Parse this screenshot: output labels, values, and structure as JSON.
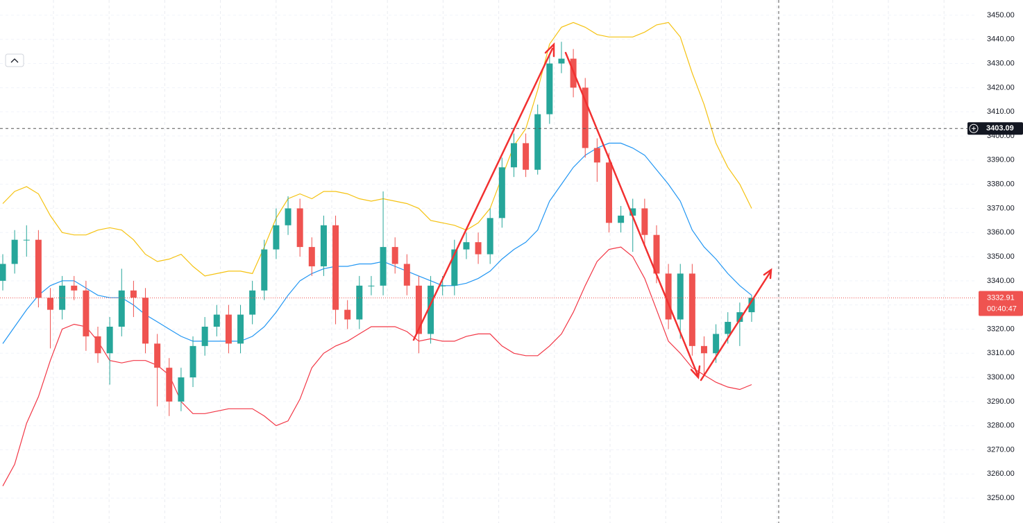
{
  "chart_data": {
    "type": "candlestick",
    "ylim": [
      3239.7,
      3456.3
    ],
    "yticks": [
      {
        "value": 3250,
        "label": "3250.00"
      },
      {
        "value": 3260,
        "label": "3260.00"
      },
      {
        "value": 3270,
        "label": "3270.00"
      },
      {
        "value": 3280,
        "label": "3280.00"
      },
      {
        "value": 3290,
        "label": "3290.00"
      },
      {
        "value": 3300,
        "label": "3300.00"
      },
      {
        "value": 3310,
        "label": "3310.00"
      },
      {
        "value": 3320,
        "label": "3320.00"
      },
      {
        "value": 3330,
        "label": "3330.00"
      },
      {
        "value": 3340,
        "label": "3340.00"
      },
      {
        "value": 3350,
        "label": "3350.00"
      },
      {
        "value": 3360,
        "label": "3360.00"
      },
      {
        "value": 3370,
        "label": "3370.00"
      },
      {
        "value": 3380,
        "label": "3380.00"
      },
      {
        "value": 3390,
        "label": "3390.00"
      },
      {
        "value": 3400,
        "label": "3400.00"
      },
      {
        "value": 3410,
        "label": "3410.00"
      },
      {
        "value": 3420,
        "label": "3420.00"
      },
      {
        "value": 3430,
        "label": "3430.00"
      },
      {
        "value": 3440,
        "label": "3440.00"
      },
      {
        "value": 3450,
        "label": "3450.00"
      }
    ],
    "grid": true,
    "up_color": "#26a69a",
    "down_color": "#ef5350",
    "open": [
      3340,
      3347,
      3357,
      3357,
      3333,
      3328,
      3338,
      3336,
      3317,
      3310,
      3321,
      3336,
      3333,
      3314,
      3304,
      3290,
      3300,
      3313,
      3321,
      3326,
      3314,
      3326,
      3336,
      3353,
      3363,
      3370,
      3354,
      3346,
      3363,
      3328,
      3324,
      3338,
      3338,
      3354,
      3347,
      3338,
      3318,
      3338,
      3338,
      3353,
      3356,
      3351,
      3366,
      3387,
      3397,
      3386,
      3409,
      3430,
      3432,
      3420,
      3395,
      3389,
      3364,
      3367,
      3370,
      3359,
      3343,
      3324,
      3343,
      3313,
      3310,
      3318,
      3323,
      3327
    ],
    "high": [
      3351,
      3361,
      3363,
      3361,
      3337,
      3342,
      3342,
      3340,
      3321,
      3325,
      3345,
      3340,
      3337,
      3318,
      3308,
      3304,
      3317,
      3325,
      3330,
      3330,
      3330,
      3340,
      3357,
      3370,
      3375,
      3374,
      3358,
      3367,
      3367,
      3332,
      3342,
      3342,
      3377,
      3358,
      3351,
      3342,
      3342,
      3342,
      3357,
      3360,
      3360,
      3370,
      3391,
      3401,
      3401,
      3413,
      3434,
      3439,
      3436,
      3424,
      3399,
      3393,
      3371,
      3374,
      3374,
      3363,
      3347,
      3347,
      3347,
      3317,
      3322,
      3327,
      3331,
      3334
    ],
    "low": [
      3336,
      3343,
      3350,
      3329,
      3312,
      3324,
      3332,
      3311,
      3306,
      3297,
      3317,
      3325,
      3310,
      3288,
      3284,
      3286,
      3296,
      3309,
      3317,
      3310,
      3310,
      3322,
      3332,
      3349,
      3359,
      3350,
      3342,
      3342,
      3322,
      3320,
      3320,
      3334,
      3334,
      3343,
      3334,
      3310,
      3314,
      3334,
      3334,
      3349,
      3347,
      3347,
      3362,
      3383,
      3383,
      3384,
      3405,
      3426,
      3416,
      3391,
      3381,
      3360,
      3360,
      3352,
      3355,
      3339,
      3320,
      3316,
      3309,
      3301,
      3306,
      3314,
      3313,
      3323
    ],
    "close": [
      3347,
      3357,
      3357,
      3333,
      3328,
      3338,
      3336,
      3317,
      3310,
      3321,
      3336,
      3333,
      3314,
      3304,
      3290,
      3300,
      3313,
      3321,
      3326,
      3314,
      3326,
      3336,
      3353,
      3363,
      3370,
      3354,
      3346,
      3363,
      3328,
      3324,
      3338,
      3338,
      3354,
      3347,
      3338,
      3318,
      3338,
      3338,
      3353,
      3356,
      3351,
      3366,
      3387,
      3397,
      3386,
      3409,
      3430,
      3432,
      3420,
      3395,
      3389,
      3364,
      3367,
      3370,
      3359,
      3343,
      3324,
      3343,
      3313,
      3310,
      3318,
      3323,
      3327,
      3333
    ],
    "overlays": [
      {
        "color": "#f5c211",
        "values": [
          3372,
          3377,
          3379,
          3376,
          3367,
          3360,
          3359,
          3359,
          3361,
          3362,
          3361,
          3357,
          3351,
          3348,
          3349,
          3351,
          3346,
          3342,
          3343,
          3344,
          3344,
          3343,
          3354,
          3366,
          3374,
          3376,
          3374,
          3377,
          3377,
          3376,
          3374,
          3373,
          3374,
          3373,
          3372,
          3370,
          3365,
          3364,
          3363,
          3361,
          3364,
          3370,
          3383,
          3396,
          3403,
          3419,
          3438,
          3445,
          3447,
          3445,
          3442,
          3441,
          3441,
          3441,
          3443,
          3446,
          3447,
          3441,
          3426,
          3413,
          3397,
          3387,
          3380,
          3370
        ]
      },
      {
        "color": "#2196f3",
        "values": [
          3314,
          3321,
          3328,
          3334,
          3338,
          3340,
          3340,
          3337,
          3334,
          3333,
          3333,
          3330,
          3326,
          3323,
          3320,
          3317,
          3315,
          3315,
          3315,
          3315,
          3315,
          3317,
          3321,
          3327,
          3334,
          3340,
          3343,
          3345,
          3346,
          3346,
          3347,
          3347,
          3348,
          3346,
          3344,
          3342,
          3340,
          3338,
          3338,
          3339,
          3341,
          3344,
          3349,
          3353,
          3356,
          3361,
          3373,
          3380,
          3387,
          3392,
          3395,
          3397,
          3397,
          3395,
          3392,
          3386,
          3380,
          3373,
          3361,
          3354,
          3349,
          3343,
          3338,
          3334
        ]
      },
      {
        "color": "#f23645",
        "values": [
          3255,
          3264,
          3281,
          3292,
          3307,
          3320,
          3322,
          3321,
          3315,
          3307,
          3306,
          3307,
          3307,
          3305,
          3301,
          3290,
          3285,
          3285,
          3286,
          3287,
          3287,
          3287,
          3284,
          3280,
          3282,
          3291,
          3304,
          3310,
          3313,
          3315,
          3318,
          3321,
          3321,
          3321,
          3319,
          3315,
          3316,
          3315,
          3315,
          3317,
          3318,
          3318,
          3313,
          3310,
          3309,
          3309,
          3313,
          3318,
          3327,
          3338,
          3348,
          3353,
          3354,
          3350,
          3341,
          3328,
          3315,
          3310,
          3304,
          3301,
          3298,
          3296,
          3295,
          3297
        ]
      }
    ],
    "crosshair_price": 3403.09,
    "last_price": 3332.91,
    "countdown": "00:40:47"
  }
}
